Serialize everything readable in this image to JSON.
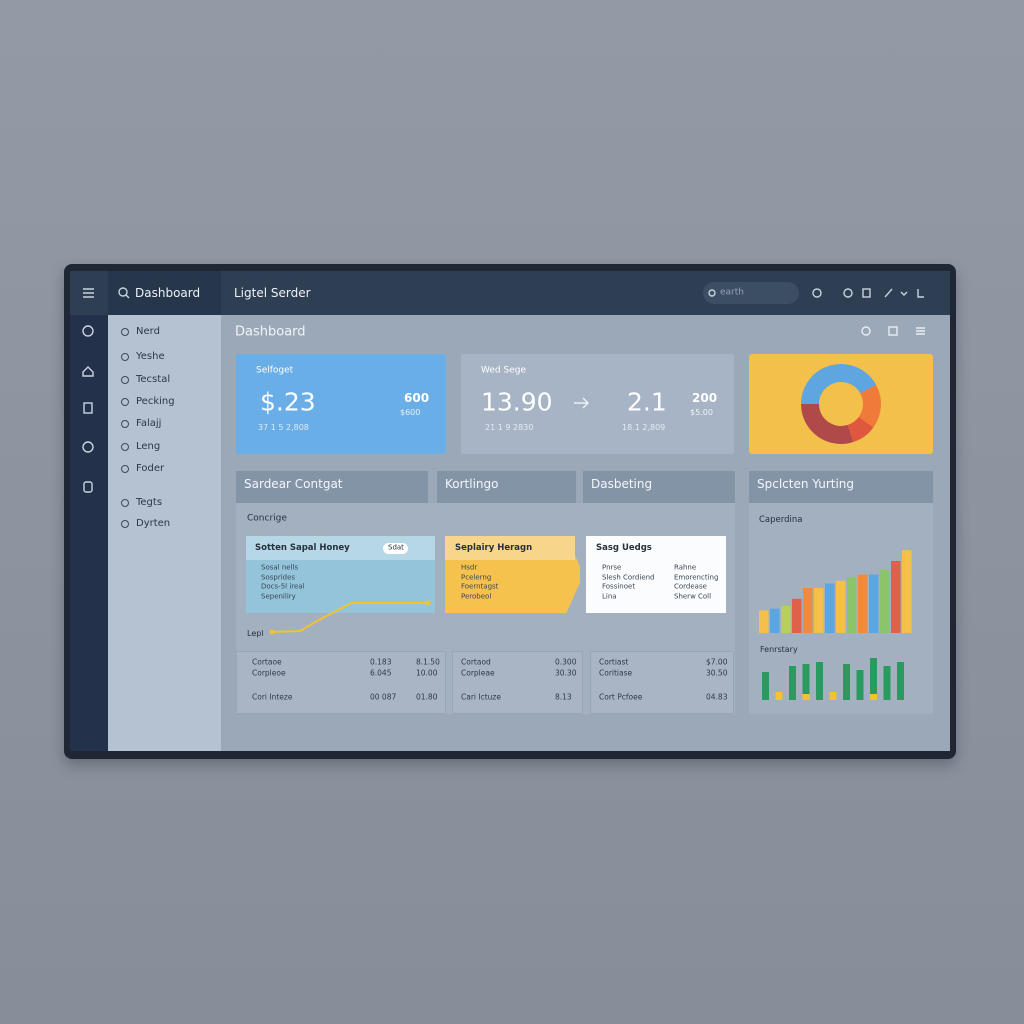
{
  "topbar": {
    "menu": "Dashboard",
    "title": "Ligtel Serder",
    "search": "earth"
  },
  "sidebar": {
    "items": [
      "Nerd",
      "Yeshe",
      "Tecstal",
      "Pecking",
      "Falajj",
      "Leng",
      "Foder",
      "Tegts",
      "Dyrten"
    ]
  },
  "main": {
    "title": "Dashboard"
  },
  "stat_cards": [
    {
      "label": "Selfoget",
      "value": "$.23",
      "side_value": "600",
      "side_sub": "$600",
      "footer": "37 1 5 2,808"
    },
    {
      "label": "Wed Sege",
      "value": "13.90",
      "value2": "2.1",
      "side_value": "200",
      "side_sub": "$5.00",
      "footer": "21 1 9 2830",
      "footer2": "18.1 2,809"
    }
  ],
  "panels": [
    "Sardear Contgat",
    "Kortlingo",
    "Dasbeting",
    "Spclcten Yurting"
  ],
  "section_label": "Concrige",
  "subcards": [
    {
      "title": "Sotten Sapal Honey",
      "badge": "Sdat",
      "items": [
        "Sosal nells",
        "Sosprides",
        "Docs-5l ireal",
        "Sepeniliry"
      ]
    },
    {
      "title": "Seplairy Heragn",
      "items": [
        "Hsdr",
        "Pcelerng",
        "Foerntagst",
        "Perobeol"
      ]
    },
    {
      "title": "Sasg Uedgs",
      "items": [
        "Pnrse",
        "Slesh Cordiend",
        "Fossinoet",
        "Lina"
      ],
      "items2": [
        "Rahne",
        "Emorencting",
        "Cordease",
        "Sherw Coll"
      ]
    }
  ],
  "line_chart": {
    "type": "line",
    "label": "Lepl",
    "x": [
      0,
      18,
      30,
      51,
      100
    ],
    "values": [
      4,
      5,
      16,
      33,
      33
    ],
    "xlim": [
      0,
      100
    ],
    "ylim": [
      0,
      40
    ],
    "color": "#f2c230"
  },
  "tables": [
    [
      [
        "Cortaoe",
        "0.183",
        "8.1.50"
      ],
      [
        "Corpleoe",
        "6.045",
        "10.00"
      ],
      [
        "Cori Inteze",
        "00 087",
        "01.80"
      ]
    ],
    [
      [
        "Cortaod",
        "0.300"
      ],
      [
        "Corpleae",
        "30.30"
      ],
      [
        "Cari Ictuze",
        "8.13"
      ]
    ],
    [
      [
        "Cortiast",
        "$7.00"
      ],
      [
        "Coritiase",
        "30.50"
      ],
      [
        "Cort Pcfoee",
        "04.83"
      ]
    ]
  ],
  "donut": {
    "type": "pie",
    "values": [
      42,
      18,
      10,
      30
    ],
    "colors": [
      "#5fa6e0",
      "#ef7a3a",
      "#e0573f",
      "#b0494a"
    ]
  },
  "bar_chart": {
    "type": "bar",
    "label": "Caperdina",
    "ylim": [
      0,
      100
    ],
    "values": [
      25,
      27,
      30,
      38,
      50,
      50,
      55,
      58,
      62,
      65,
      65,
      70,
      80,
      92
    ],
    "colors": [
      "#f5c04a",
      "#5aa6e0",
      "#b8cf5a",
      "#e0614a",
      "#f08a3c",
      "#f5c04a",
      "#5aa6e0",
      "#f5c04a",
      "#8cc46a",
      "#f08a3c",
      "#5aa6e0",
      "#8cc46a",
      "#e0614a",
      "#f5c04a"
    ]
  },
  "bar_chart_2": {
    "type": "bar",
    "label": "Fenrstary",
    "ylim": [
      0,
      100
    ],
    "series": [
      {
        "color": "#f2c230",
        "values": [
          0,
          20,
          0,
          15,
          0,
          20,
          0,
          0,
          15,
          0,
          0
        ]
      },
      {
        "color": "#2a9a5e",
        "values": [
          70,
          0,
          85,
          75,
          95,
          0,
          90,
          75,
          90,
          85,
          95
        ]
      }
    ]
  }
}
